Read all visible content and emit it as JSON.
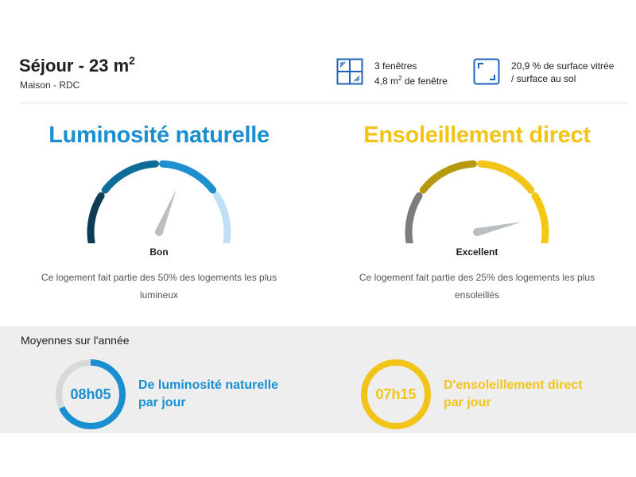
{
  "room": {
    "title": "Séjour - 23 m",
    "title_exponent": "2",
    "subtitle": "Maison - RDC"
  },
  "features": {
    "windows_line1": "3 fenêtres",
    "windows_line2_prefix": "4,8 m",
    "windows_line2_exponent": "2",
    "windows_line2_suffix": " de fenêtre",
    "windows_icon": "window-icon",
    "surface_line1": "20,9 % de surface vitrée",
    "surface_line2": "/ surface au sol",
    "surface_icon": "floor-surface-icon"
  },
  "gauges": [
    {
      "title": "Luminosité naturelle",
      "title_color": "#1a8fd0",
      "segment_colors": [
        "#0f3c55",
        "#0e6d98",
        "#1f90cf",
        "#bfe0f2"
      ],
      "level": 0.6,
      "rating": "Bon",
      "description": "Ce logement fait partie des 50% des logements les plus lumineux"
    },
    {
      "title": "Ensoleillement direct",
      "title_color": "#f2c418",
      "segment_colors": [
        "#7d7d7d",
        "#b59a10",
        "#f0c418",
        "#f4c812"
      ],
      "level": 0.85,
      "rating": "Excellent",
      "description": "Ce logement fait partie des 25% des logements les plus ensoleillés"
    }
  ],
  "averages": {
    "title": "Moyennes sur l'année",
    "items": [
      {
        "value": "08h05",
        "label": "De luminosité naturelle par jour",
        "color": "#1a8fd0",
        "progress": 0.68
      },
      {
        "value": "07h15",
        "label": "D'ensoleillement direct par jour",
        "color": "#f2c418",
        "progress": 1.0
      }
    ]
  }
}
